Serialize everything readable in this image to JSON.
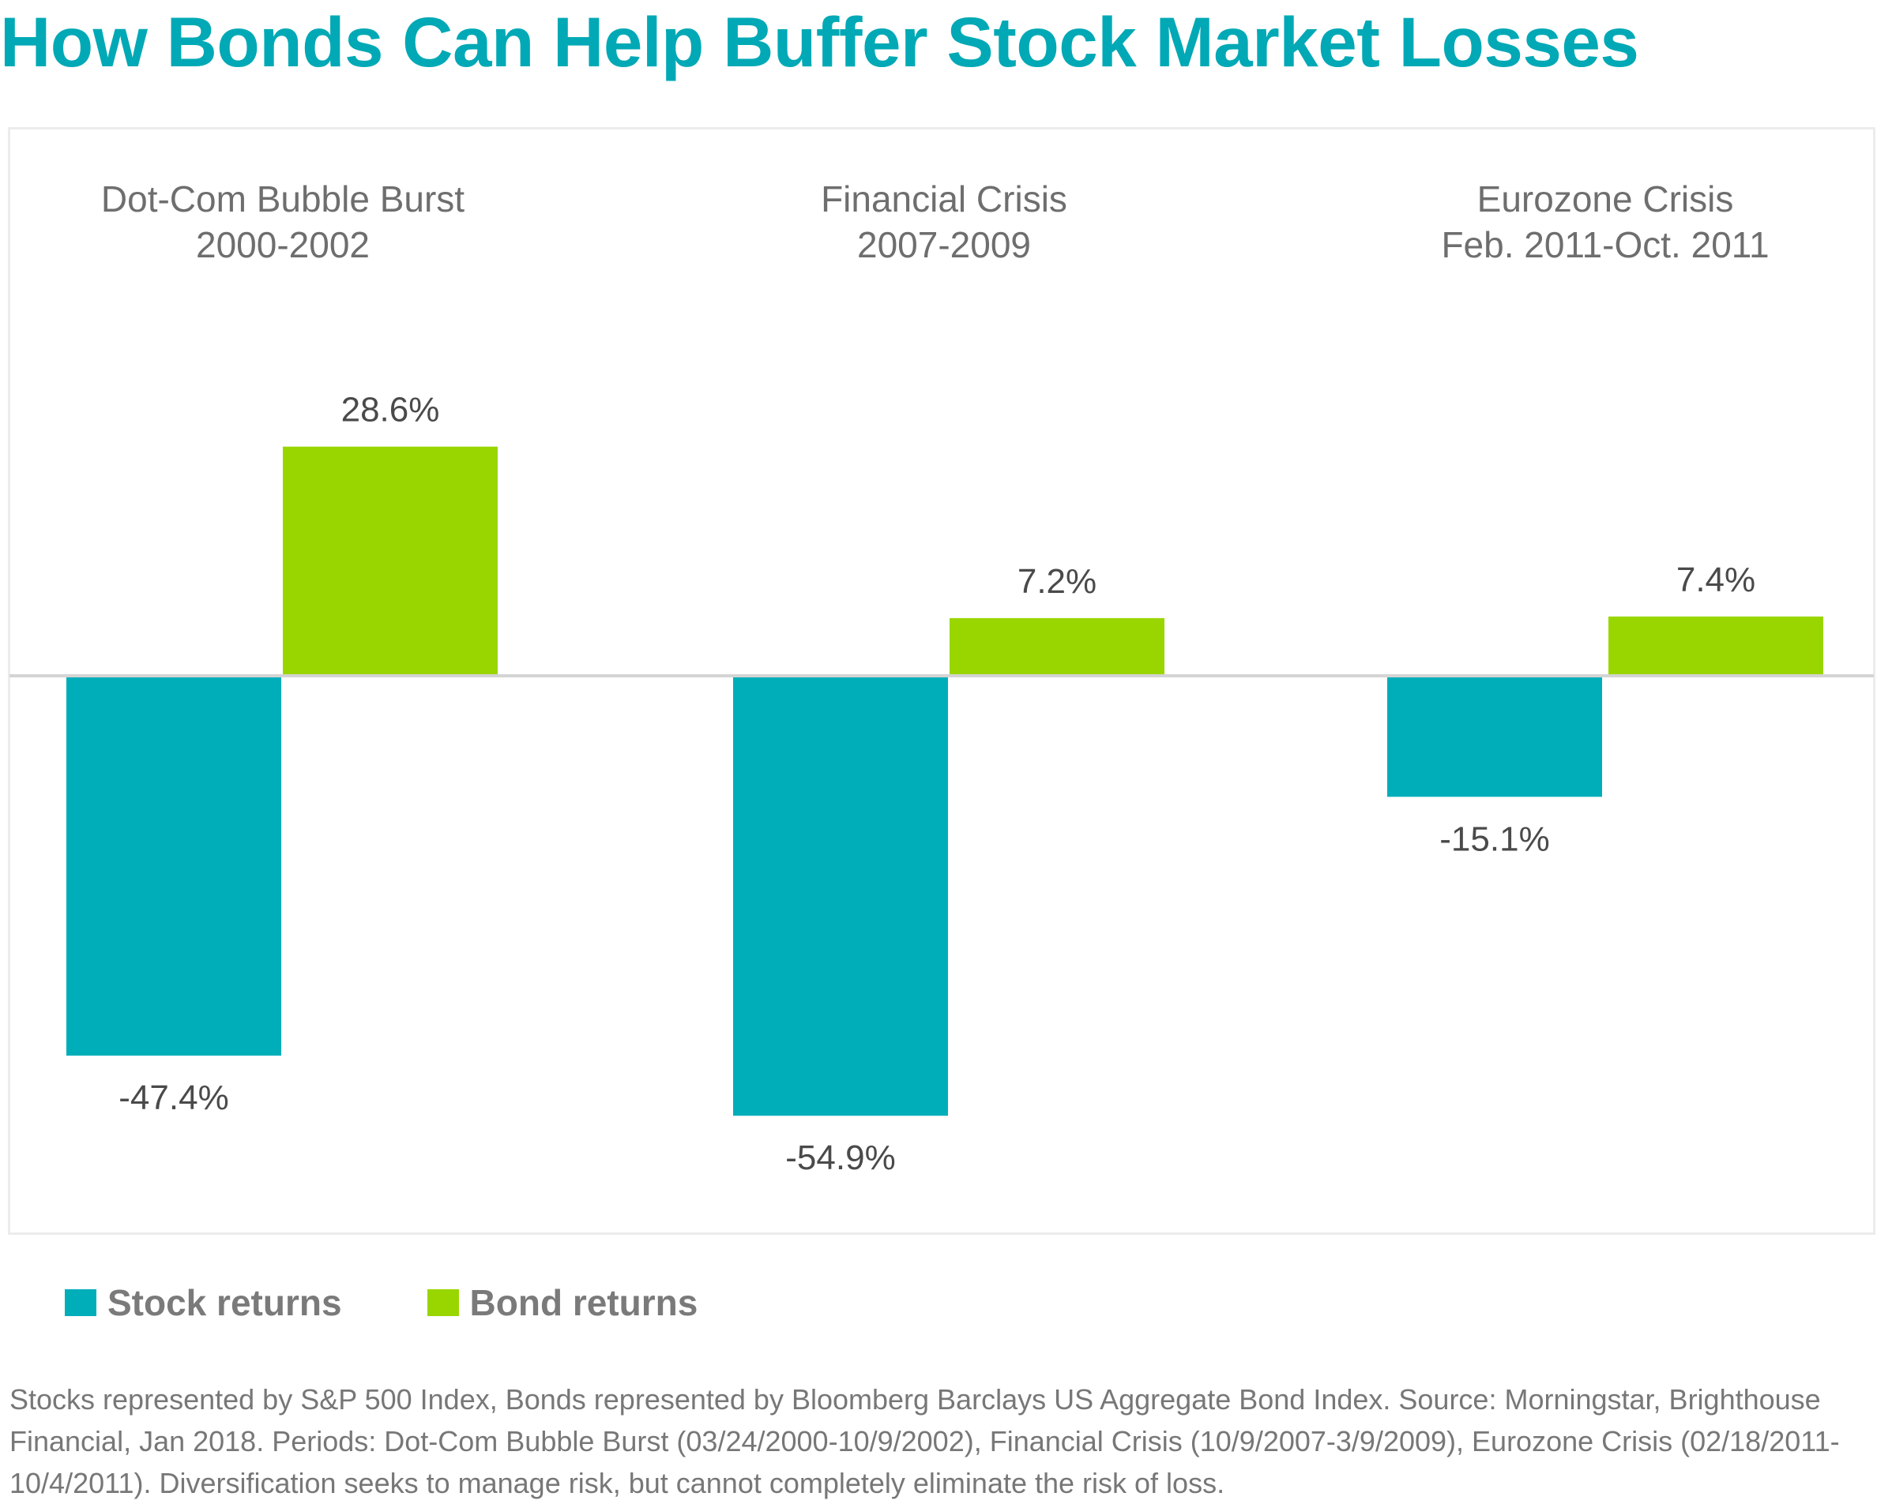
{
  "title": "How Bonds Can Help Buffer Stock Market Losses",
  "colors": {
    "title": "#00a9b5",
    "stock": "#00aeb9",
    "bond": "#99d600",
    "zero_line": "#d4d4d4",
    "text": "#6e6e6e"
  },
  "legend": [
    {
      "label": "Stock returns",
      "color": "#00aeb9"
    },
    {
      "label": "Bond returns",
      "color": "#99d600"
    }
  ],
  "footnote": "Stocks represented by S&P 500 Index, Bonds represented by Bloomberg Barclays US Aggregate Bond Index. Source: Morningstar, Brighthouse Financial, Jan 2018. Periods: Dot-Com Bubble Burst (03/24/2000-10/9/2002), Financial Crisis (10/9/2007-3/9/2009), Eurozone Crisis (02/18/2011-10/4/2011). Diversification seeks to manage risk, but cannot completely eliminate the risk of loss.",
  "chart_data": {
    "type": "bar",
    "title": "How Bonds Can Help Buffer Stock Market Losses",
    "categories": [
      [
        "Dot-Com Bubble Burst",
        "2000-2002"
      ],
      [
        "Financial Crisis",
        "2007-2009"
      ],
      [
        "Eurozone Crisis",
        "Feb. 2011-Oct. 2011"
      ]
    ],
    "series": [
      {
        "name": "Stock returns",
        "values": [
          -47.4,
          -54.9,
          -15.1
        ],
        "labels": [
          "-47.4%",
          "-54.9%",
          "-15.1%"
        ],
        "color": "#00aeb9"
      },
      {
        "name": "Bond returns",
        "values": [
          28.6,
          7.2,
          7.4
        ],
        "labels": [
          "28.6%",
          "7.2%",
          "7.4%"
        ],
        "color": "#99d600"
      }
    ],
    "ylim": [
      -70,
      45
    ],
    "grid": false,
    "legend_position": "bottom-left"
  }
}
